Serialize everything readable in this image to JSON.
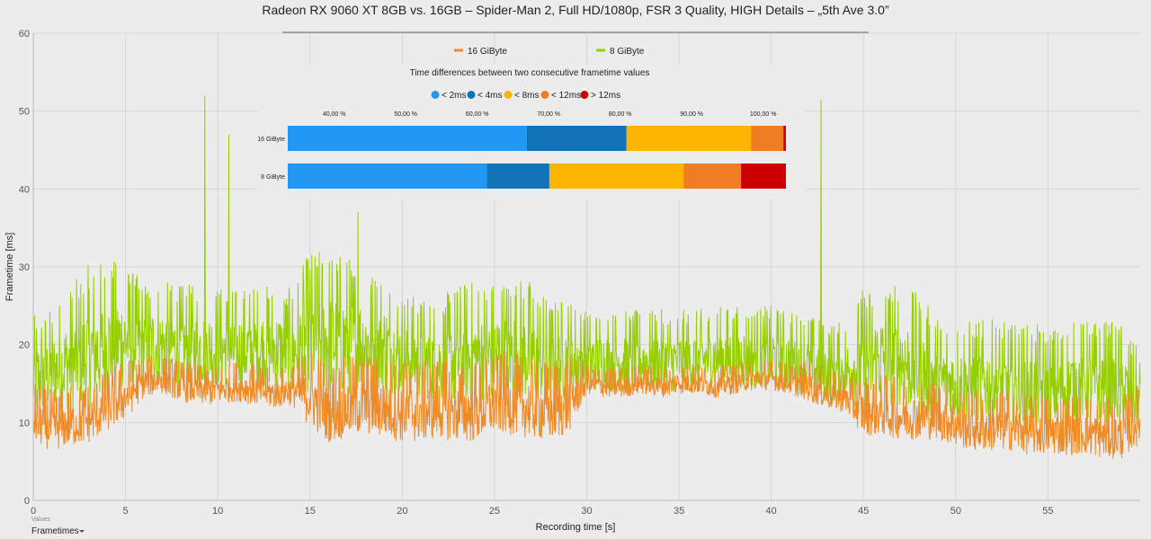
{
  "colors": {
    "background": "#ececec",
    "grid": "#d6d6d6",
    "series_16gb": "#f08a24",
    "series_8gb": "#96cf00",
    "delta_lt2": "#2196f3",
    "delta_lt4": "#1272b8",
    "delta_lt8": "#fbb400",
    "delta_lt12": "#ef7d22",
    "delta_gt12": "#cc0000"
  },
  "ui": {
    "values_label": "Values",
    "metric_select": "Frametimes",
    "metric_select_icon": "caret-down-icon"
  },
  "chart_data": [
    {
      "type": "line",
      "title": "Radeon RX 9060 XT 8GB vs. 16GB – Spider-Man 2, Full HD/1080p, FSR 3 Quality, HIGH Details – „5th Ave 3.0”",
      "xlabel": "Recording time [s]",
      "ylabel": "Frametime [ms]",
      "xlim": [
        0,
        60
      ],
      "ylim": [
        0,
        60
      ],
      "x_ticks": [
        0,
        5,
        10,
        15,
        20,
        25,
        30,
        35,
        40,
        45,
        50,
        55
      ],
      "x_tick_labels": [
        "0",
        "5",
        "10",
        "15",
        "20",
        "25",
        "30",
        "35",
        "40",
        "45",
        "50",
        "55"
      ],
      "y_ticks": [
        0,
        10,
        20,
        30,
        40,
        50,
        60
      ],
      "y_tick_labels": [
        "0",
        "10",
        "20",
        "30",
        "40",
        "50",
        "60"
      ],
      "grid": true,
      "legend_position": "top-center",
      "series": [
        {
          "name": "16 GiByte",
          "color": "#f08a24",
          "x": [
            0,
            1,
            2,
            3,
            4,
            5,
            6,
            7,
            8,
            9,
            10,
            11,
            12,
            13,
            14,
            15,
            16,
            17,
            18,
            19,
            20,
            21,
            22,
            23,
            24,
            25,
            26,
            27,
            28,
            29,
            30,
            31,
            32,
            33,
            34,
            35,
            36,
            37,
            38,
            39,
            40,
            41,
            42,
            43,
            44,
            45,
            46,
            47,
            48,
            49,
            50,
            51,
            52,
            53,
            54,
            55,
            56,
            57,
            58,
            59,
            60
          ],
          "values": [
            10,
            9,
            9.5,
            10,
            11.5,
            13,
            15,
            15.5,
            14.5,
            14,
            14,
            14.5,
            14,
            13.5,
            14,
            13,
            11,
            11.5,
            12,
            11.5,
            11,
            11,
            11.5,
            11,
            11,
            12,
            12,
            11.5,
            11,
            12,
            15,
            14.5,
            14.5,
            15,
            14.5,
            15,
            15,
            14.5,
            15,
            15.5,
            15.5,
            15,
            14.5,
            13.5,
            13,
            11,
            11,
            10.5,
            10.5,
            10.5,
            9.5,
            9,
            9,
            9,
            8.5,
            8.5,
            8.5,
            8.5,
            8,
            8,
            10
          ],
          "noise_amplitude": [
            3,
            3,
            3,
            3,
            3,
            3,
            2,
            2,
            2,
            2,
            2,
            2,
            2,
            2,
            2,
            4,
            4,
            4,
            4,
            4,
            4,
            4,
            4,
            4,
            4,
            4,
            4,
            4,
            4,
            4,
            1.5,
            1.5,
            1.5,
            1.5,
            1.5,
            1.5,
            1.5,
            1.5,
            1.5,
            1.5,
            1.5,
            1.5,
            2,
            2,
            2,
            3,
            3,
            3,
            3,
            3,
            3,
            3,
            3,
            3,
            3,
            3,
            3,
            3,
            3,
            3,
            3
          ]
        },
        {
          "name": "8 GiByte",
          "color": "#96cf00",
          "x": [
            0,
            1,
            2,
            3,
            4,
            5,
            6,
            7,
            8,
            9,
            10,
            11,
            12,
            13,
            14,
            15,
            16,
            17,
            18,
            19,
            20,
            21,
            22,
            23,
            24,
            25,
            26,
            27,
            28,
            29,
            30,
            31,
            32,
            33,
            34,
            35,
            36,
            37,
            38,
            39,
            40,
            41,
            42,
            43,
            44,
            45,
            46,
            47,
            48,
            49,
            50,
            51,
            52,
            53,
            54,
            55,
            56,
            57,
            58,
            59,
            60
          ],
          "values": [
            15,
            16,
            17,
            18,
            19,
            20,
            19.5,
            19.5,
            19,
            19,
            19,
            18.5,
            19,
            19,
            18.5,
            20,
            20,
            19.5,
            19.5,
            19,
            18,
            17.5,
            17,
            17.5,
            18,
            18,
            18.5,
            18,
            17,
            17.5,
            17.5,
            17.5,
            17.5,
            17.5,
            17.5,
            17.5,
            17.5,
            18,
            18,
            18,
            18,
            17.5,
            17,
            16,
            16,
            17,
            17.5,
            17.5,
            16,
            15,
            14.5,
            14.5,
            14.5,
            14,
            14,
            13.5,
            14,
            14.5,
            14.5,
            14,
            12
          ],
          "noise_amplitude": [
            5,
            5,
            6,
            7,
            7,
            6,
            5,
            5,
            5,
            5,
            5,
            5,
            5,
            5,
            5,
            7,
            7,
            7,
            6,
            6,
            5,
            5,
            5,
            6,
            6,
            6,
            6,
            6,
            5,
            5,
            4,
            4,
            4,
            4,
            4,
            4,
            4,
            4,
            4,
            4,
            4,
            4,
            4,
            4,
            4,
            6,
            6,
            6,
            6,
            5,
            5,
            5,
            5,
            5,
            5,
            5,
            5,
            5,
            5,
            5,
            4
          ],
          "spikes": [
            {
              "x": 9.3,
              "y": 52
            },
            {
              "x": 10.6,
              "y": 47
            },
            {
              "x": 17.6,
              "y": 37
            },
            {
              "x": 42.7,
              "y": 51.5
            }
          ]
        }
      ]
    },
    {
      "type": "bar",
      "orientation": "horizontal",
      "stacked": true,
      "title": "Time differences between two consecutive frametime values",
      "categories": [
        "16 GiByte",
        "8 GiByte"
      ],
      "x_ticks": [
        40,
        50,
        60,
        70,
        80,
        90,
        100
      ],
      "x_tick_labels": [
        "40,00 %",
        "50,00 %",
        "60,00 %",
        "70,00 %",
        "80,00 %",
        "90,00 %",
        "100,00 %"
      ],
      "x_start": 33.5,
      "legend_position": "top",
      "series": [
        {
          "name": "< 2ms",
          "color": "#2196f3",
          "values": [
            48.0,
            40.0
          ]
        },
        {
          "name": "< 4ms",
          "color": "#1272b8",
          "values": [
            20.0,
            12.5
          ]
        },
        {
          "name": "< 8ms",
          "color": "#fbb400",
          "values": [
            25.0,
            27.0
          ]
        },
        {
          "name": "< 12ms",
          "color": "#ef7d22",
          "values": [
            6.5,
            11.5
          ]
        },
        {
          "name": "> 12ms",
          "color": "#cc0000",
          "values": [
            0.5,
            9.0
          ]
        }
      ]
    }
  ]
}
